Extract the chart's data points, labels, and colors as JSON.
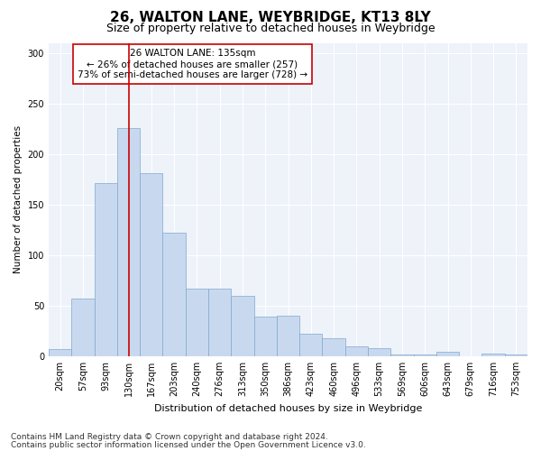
{
  "title": "26, WALTON LANE, WEYBRIDGE, KT13 8LY",
  "subtitle": "Size of property relative to detached houses in Weybridge",
  "xlabel": "Distribution of detached houses by size in Weybridge",
  "ylabel": "Number of detached properties",
  "bar_labels": [
    "20sqm",
    "57sqm",
    "93sqm",
    "130sqm",
    "167sqm",
    "203sqm",
    "240sqm",
    "276sqm",
    "313sqm",
    "350sqm",
    "386sqm",
    "423sqm",
    "460sqm",
    "496sqm",
    "533sqm",
    "569sqm",
    "606sqm",
    "643sqm",
    "679sqm",
    "716sqm",
    "753sqm"
  ],
  "bar_values": [
    7,
    57,
    171,
    226,
    181,
    122,
    67,
    67,
    60,
    39,
    40,
    22,
    18,
    10,
    8,
    2,
    2,
    4,
    0,
    3,
    2
  ],
  "bar_color": "#c8d9ef",
  "bar_edge_color": "#7fa8d0",
  "vline_x": 3,
  "vline_color": "#cc0000",
  "annotation_text": "26 WALTON LANE: 135sqm\n← 26% of detached houses are smaller (257)\n73% of semi-detached houses are larger (728) →",
  "annotation_box_color": "#ffffff",
  "annotation_box_edge": "#cc0000",
  "ylim": [
    0,
    310
  ],
  "yticks": [
    0,
    50,
    100,
    150,
    200,
    250,
    300
  ],
  "bg_color": "#eef2f9",
  "footer1": "Contains HM Land Registry data © Crown copyright and database right 2024.",
  "footer2": "Contains public sector information licensed under the Open Government Licence v3.0.",
  "title_fontsize": 11,
  "subtitle_fontsize": 9,
  "xlabel_fontsize": 8,
  "ylabel_fontsize": 7.5,
  "tick_fontsize": 7,
  "annotation_fontsize": 7.5,
  "footer_fontsize": 6.5
}
